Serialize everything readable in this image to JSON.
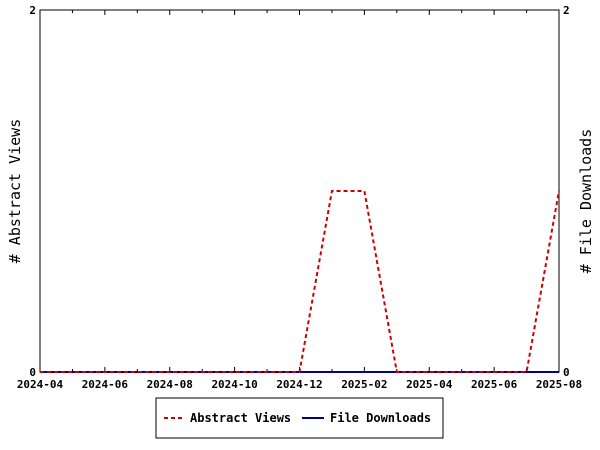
{
  "chart_data": {
    "type": "line",
    "x_ticks": [
      "2024-04",
      "2024-06",
      "2024-08",
      "2024-10",
      "2024-12",
      "2025-02",
      "2025-04",
      "2025-06",
      "2025-08"
    ],
    "x_months": [
      "2024-04",
      "2024-05",
      "2024-06",
      "2024-07",
      "2024-08",
      "2024-09",
      "2024-10",
      "2024-11",
      "2024-12",
      "2025-01",
      "2025-02",
      "2025-03",
      "2025-04",
      "2025-05",
      "2025-06",
      "2025-07",
      "2025-08"
    ],
    "series": [
      {
        "name": "Abstract Views",
        "color": "#cc0000",
        "dash": true,
        "axis": "left",
        "values": [
          0,
          0,
          0,
          0,
          0,
          0,
          0,
          0,
          0,
          1,
          1,
          0,
          0,
          0,
          0,
          0,
          1
        ]
      },
      {
        "name": "File Downloads",
        "color": "#000099",
        "dash": false,
        "axis": "right",
        "values": [
          0,
          0,
          0,
          0,
          0,
          0,
          0,
          0,
          0,
          0,
          0,
          0,
          0,
          0,
          0,
          0,
          0
        ]
      }
    ],
    "ylabel_left": "# Abstract Views",
    "ylabel_right": "# File Downloads",
    "ylim_left": [
      0,
      2
    ],
    "ylim_right": [
      0,
      2
    ],
    "y_ticks_left": [
      "0",
      "2"
    ],
    "y_ticks_right": [
      "0",
      "2"
    ],
    "grid": false,
    "legend_position": "bottom"
  }
}
